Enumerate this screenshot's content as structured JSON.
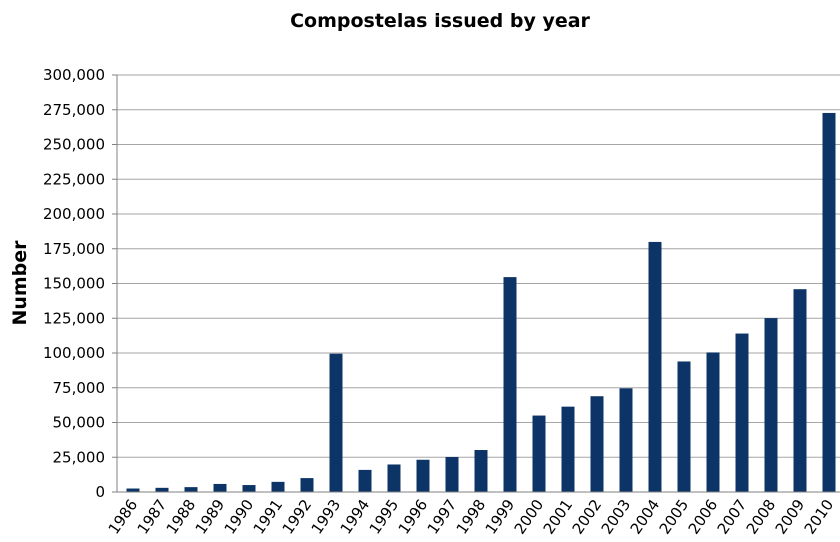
{
  "chart_data": {
    "type": "bar",
    "title": "Compostelas issued by year",
    "xlabel": "",
    "ylabel": "Number",
    "ylim": [
      0,
      300000
    ],
    "yticks": [
      "0",
      "25,000",
      "50,000",
      "75,000",
      "100,000",
      "125,000",
      "150,000",
      "175,000",
      "200,000",
      "225,000",
      "250,000",
      "275,000",
      "300,000"
    ],
    "grid": true,
    "legend": "none",
    "categories": [
      "1986",
      "1987",
      "1988",
      "1989",
      "1990",
      "1991",
      "1992",
      "1993",
      "1994",
      "1995",
      "1996",
      "1997",
      "1998",
      "1999",
      "2000",
      "2001",
      "2002",
      "2003",
      "2004",
      "2005",
      "2006",
      "2007",
      "2008",
      "2009",
      "2010"
    ],
    "values": [
      2500,
      3000,
      3500,
      5800,
      5000,
      7300,
      10000,
      99500,
      15900,
      19800,
      23200,
      25200,
      30200,
      154600,
      55000,
      61400,
      68900,
      74600,
      179900,
      93900,
      100400,
      114000,
      125100,
      145900,
      272700
    ],
    "bar_color": "#0d3466",
    "grid_color": "#a6a6a6"
  }
}
